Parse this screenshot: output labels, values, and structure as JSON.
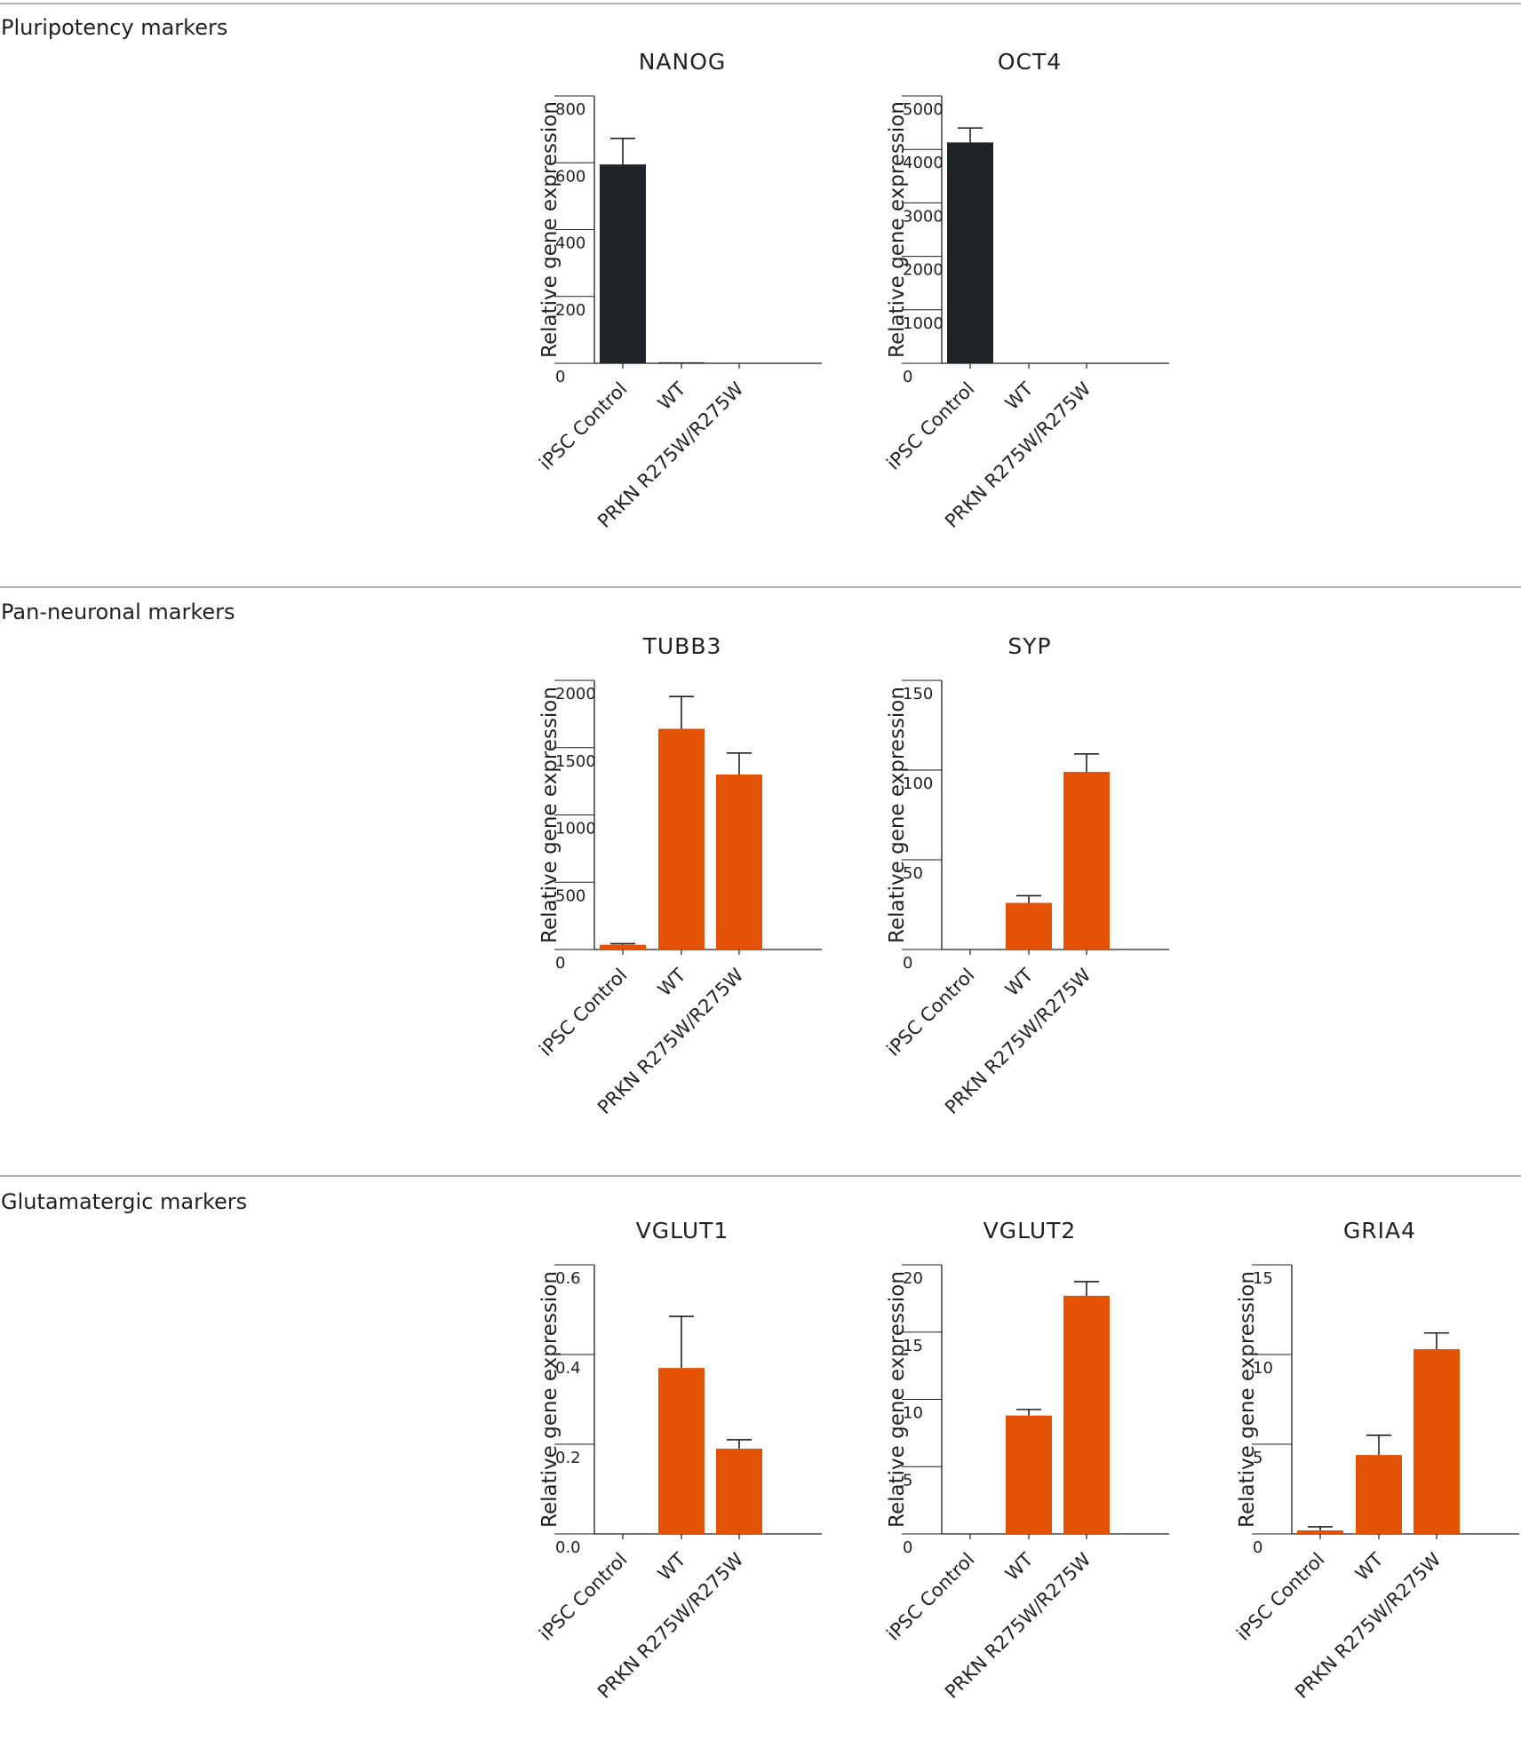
{
  "colors": {
    "pluripotency": "#1f2429",
    "neuronal": "#e35205",
    "axis": "#231f20",
    "grid": "#9a9a9a"
  },
  "sections": [
    {
      "title": "Pluripotency markers",
      "color_key": "pluripotency",
      "charts": [
        {
          "title": "NANOG",
          "ylabel": "Relative gene expression",
          "ylim": [
            0,
            800
          ],
          "yticks": [
            0,
            200,
            400,
            600,
            800
          ],
          "tick_labels": [
            "0",
            "200",
            "400",
            "600",
            "800"
          ],
          "categories": [
            "iPSC Control",
            "WT",
            "PRKN R275W/R275W"
          ],
          "values": [
            595,
            3,
            0
          ],
          "errors": [
            78,
            0,
            0
          ]
        },
        {
          "title": "OCT4",
          "ylabel": "Relative gene expression",
          "ylim": [
            0,
            5000
          ],
          "yticks": [
            0,
            1000,
            2000,
            3000,
            4000,
            5000
          ],
          "tick_labels": [
            "0",
            "1000",
            "2000",
            "3000",
            "4000",
            "5000"
          ],
          "categories": [
            "iPSC Control",
            "WT",
            "PRKN R275W/R275W"
          ],
          "values": [
            4130,
            0,
            0
          ],
          "errors": [
            270,
            0,
            0
          ]
        }
      ]
    },
    {
      "title": "Pan-neuronal markers",
      "color_key": "neuronal",
      "charts": [
        {
          "title": "TUBB3",
          "ylabel": "Relative gene expression",
          "ylim": [
            0,
            2000
          ],
          "yticks": [
            0,
            500,
            1000,
            1500,
            2000
          ],
          "tick_labels": [
            "0",
            "500",
            "1000",
            "1500",
            "2000"
          ],
          "categories": [
            "iPSC Control",
            "WT",
            "PRKN R275W/R275W"
          ],
          "values": [
            35,
            1640,
            1300
          ],
          "errors": [
            8,
            240,
            160
          ]
        },
        {
          "title": "SYP",
          "ylabel": "Relative gene expression",
          "ylim": [
            0,
            150
          ],
          "yticks": [
            0,
            50,
            100,
            150
          ],
          "tick_labels": [
            "0",
            "50",
            "100",
            "150"
          ],
          "categories": [
            "iPSC Control",
            "WT",
            "PRKN R275W/R275W"
          ],
          "values": [
            0,
            26,
            99
          ],
          "errors": [
            0,
            4,
            10
          ]
        }
      ]
    },
    {
      "title": "Glutamatergic markers",
      "color_key": "neuronal",
      "charts": [
        {
          "title": "VGLUT1",
          "ylabel": "Relative gene expression",
          "ylim": [
            0,
            0.6
          ],
          "yticks": [
            0,
            0.2,
            0.4,
            0.6
          ],
          "tick_labels": [
            "0.0",
            "0.2",
            "0.4",
            "0.6"
          ],
          "categories": [
            "iPSC Control",
            "WT",
            "PRKN R275W/R275W"
          ],
          "values": [
            0,
            0.37,
            0.19
          ],
          "errors": [
            0,
            0.115,
            0.02
          ]
        },
        {
          "title": "VGLUT2",
          "ylabel": "Relative gene expression",
          "ylim": [
            0,
            20
          ],
          "yticks": [
            0,
            5,
            10,
            15,
            20
          ],
          "tick_labels": [
            "0",
            "5",
            "10",
            "15",
            "20"
          ],
          "categories": [
            "iPSC Control",
            "WT",
            "PRKN R275W/R275W"
          ],
          "values": [
            0,
            8.8,
            17.7
          ],
          "errors": [
            0,
            0.45,
            1.05
          ]
        },
        {
          "title": "GRIA4",
          "ylabel": "Relative gene expression",
          "ylim": [
            0,
            15
          ],
          "yticks": [
            0,
            5,
            10,
            15
          ],
          "tick_labels": [
            "0",
            "5",
            "10",
            "15"
          ],
          "categories": [
            "iPSC Control",
            "WT",
            "PRKN R275W/R275W"
          ],
          "values": [
            0.2,
            4.4,
            10.3
          ],
          "errors": [
            0.2,
            1.1,
            0.9
          ]
        }
      ]
    }
  ],
  "chart_data": [
    {
      "type": "bar",
      "title": "NANOG",
      "xlabel": "",
      "ylabel": "Relative gene expression",
      "ylim": [
        0,
        800
      ],
      "categories": [
        "iPSC Control",
        "WT",
        "PRKN R275W/R275W"
      ],
      "values": [
        595,
        3,
        0
      ],
      "errors": [
        78,
        0,
        0
      ]
    },
    {
      "type": "bar",
      "title": "OCT4",
      "xlabel": "",
      "ylabel": "Relative gene expression",
      "ylim": [
        0,
        5000
      ],
      "categories": [
        "iPSC Control",
        "WT",
        "PRKN R275W/R275W"
      ],
      "values": [
        4130,
        0,
        0
      ],
      "errors": [
        270,
        0,
        0
      ]
    },
    {
      "type": "bar",
      "title": "TUBB3",
      "xlabel": "",
      "ylabel": "Relative gene expression",
      "ylim": [
        0,
        2000
      ],
      "categories": [
        "iPSC Control",
        "WT",
        "PRKN R275W/R275W"
      ],
      "values": [
        35,
        1640,
        1300
      ],
      "errors": [
        8,
        240,
        160
      ]
    },
    {
      "type": "bar",
      "title": "SYP",
      "xlabel": "",
      "ylabel": "Relative gene expression",
      "ylim": [
        0,
        150
      ],
      "categories": [
        "iPSC Control",
        "WT",
        "PRKN R275W/R275W"
      ],
      "values": [
        0,
        26,
        99
      ],
      "errors": [
        0,
        4,
        10
      ]
    },
    {
      "type": "bar",
      "title": "VGLUT1",
      "xlabel": "",
      "ylabel": "Relative gene expression",
      "ylim": [
        0,
        0.6
      ],
      "categories": [
        "iPSC Control",
        "WT",
        "PRKN R275W/R275W"
      ],
      "values": [
        0,
        0.37,
        0.19
      ],
      "errors": [
        0,
        0.115,
        0.02
      ]
    },
    {
      "type": "bar",
      "title": "VGLUT2",
      "xlabel": "",
      "ylabel": "Relative gene expression",
      "ylim": [
        0,
        20
      ],
      "categories": [
        "iPSC Control",
        "WT",
        "PRKN R275W/R275W"
      ],
      "values": [
        0,
        8.8,
        17.7
      ],
      "errors": [
        0,
        0.45,
        1.05
      ]
    },
    {
      "type": "bar",
      "title": "GRIA4",
      "xlabel": "",
      "ylabel": "Relative gene expression",
      "ylim": [
        0,
        15
      ],
      "categories": [
        "iPSC Control",
        "WT",
        "PRKN R275W/R275W"
      ],
      "values": [
        0.2,
        4.4,
        10.3
      ],
      "errors": [
        0.2,
        1.1,
        0.9
      ]
    }
  ]
}
